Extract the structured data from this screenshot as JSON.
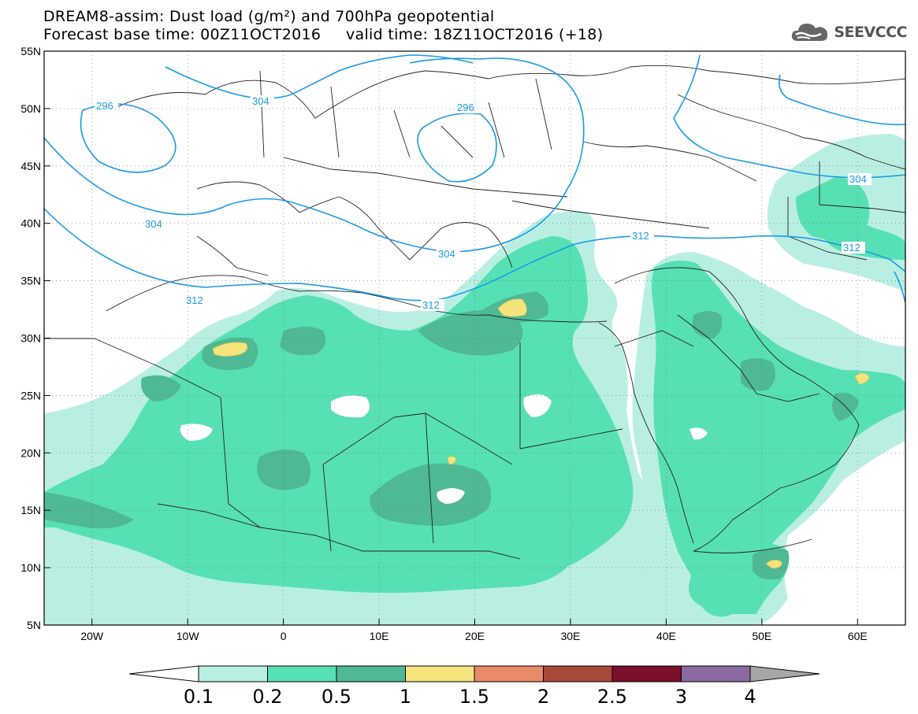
{
  "title": {
    "line1": "DREAM8-assim: Dust load (g/m²) and 700hPa geopotential",
    "line2": "Forecast base time: 00Z11OCT2016     valid time: 18Z11OCT2016 (+18)"
  },
  "logo": {
    "text": "SEEVCCC",
    "icon": "cloud-icon"
  },
  "map": {
    "lon_range": [
      -25,
      65
    ],
    "lat_range": [
      5,
      55
    ],
    "lon_ticks": [
      {
        "value": -20,
        "label": "20W"
      },
      {
        "value": -10,
        "label": "10W"
      },
      {
        "value": 0,
        "label": "0"
      },
      {
        "value": 10,
        "label": "10E"
      },
      {
        "value": 20,
        "label": "20E"
      },
      {
        "value": 30,
        "label": "30E"
      },
      {
        "value": 40,
        "label": "40E"
      },
      {
        "value": 50,
        "label": "50E"
      },
      {
        "value": 60,
        "label": "60E"
      }
    ],
    "lat_ticks": [
      {
        "value": 55,
        "label": "55N"
      },
      {
        "value": 50,
        "label": "50N"
      },
      {
        "value": 45,
        "label": "45N"
      },
      {
        "value": 40,
        "label": "40N"
      },
      {
        "value": 35,
        "label": "35N"
      },
      {
        "value": 30,
        "label": "30N"
      },
      {
        "value": 25,
        "label": "25N"
      },
      {
        "value": 20,
        "label": "20N"
      },
      {
        "value": 15,
        "label": "15N"
      },
      {
        "value": 10,
        "label": "10N"
      },
      {
        "value": 5,
        "label": "5N"
      }
    ],
    "gridlines": "dotted",
    "contour_color": "#1a9be6",
    "geopotential_labels": [
      "296",
      "304",
      "296",
      "304",
      "304",
      "312",
      "312",
      "312",
      "304",
      "312"
    ]
  },
  "colorbar": {
    "boundaries": [
      "0.1",
      "0.2",
      "0.5",
      "1",
      "1.5",
      "2",
      "2.5",
      "3",
      "4"
    ],
    "colors": [
      "#b9efe3",
      "#57e0b3",
      "#4fb894",
      "#f5e47b",
      "#e8896a",
      "#a84a3a",
      "#7c0f2a",
      "#8a6aa0"
    ],
    "under_color": "#ffffff",
    "over_color": "#a6a6a6"
  },
  "chart_data": {
    "type": "heatmap",
    "title": "DREAM8-assim: Dust load (g/m²) and 700hPa geopotential",
    "subtitle": "Forecast base time: 00Z11OCT2016     valid time: 18Z11OCT2016 (+18)",
    "variable": "Dust load (g/m²)",
    "xlim": [
      -25,
      65
    ],
    "ylim": [
      5,
      55
    ],
    "levels": [
      0.1,
      0.2,
      0.5,
      1,
      1.5,
      2,
      2.5,
      3,
      4
    ],
    "contour_values": [
      296,
      304,
      312
    ]
  }
}
